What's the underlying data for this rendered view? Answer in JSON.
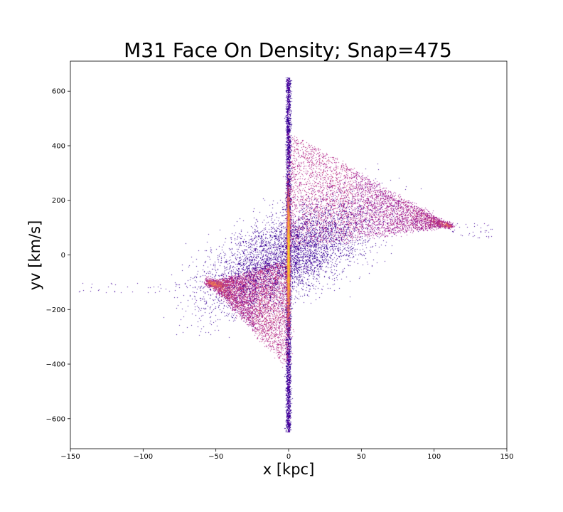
{
  "chart_data": {
    "type": "heatmap",
    "title": "M31 Face On Density; Snap=475",
    "xlabel": "x [kpc]",
    "ylabel": "yv [km/s]",
    "xlim": [
      -150,
      150
    ],
    "ylim": [
      -710,
      710
    ],
    "xticks": [
      -150,
      -100,
      -50,
      0,
      50,
      100,
      150
    ],
    "xtick_labels": [
      "−150",
      "−100",
      "−50",
      "0",
      "50",
      "100",
      "150"
    ],
    "yticks": [
      -600,
      -400,
      -200,
      0,
      200,
      400,
      600
    ],
    "ytick_labels": [
      "−600",
      "−400",
      "−200",
      "0",
      "200",
      "400",
      "600"
    ],
    "colormap": "plasma",
    "colors": [
      "#0d0887",
      "#6a00a8",
      "#b12a90",
      "#e16462",
      "#fca636",
      "#f0f921"
    ],
    "grid": false,
    "features": [
      {
        "region": "central vertical ridge",
        "x": [
          -2,
          2
        ],
        "y": [
          -650,
          660
        ],
        "density": "highest"
      },
      {
        "region": "upper-right arm",
        "x": [
          0,
          115
        ],
        "y": [
          90,
          420
        ],
        "tip": [
          110,
          110
        ],
        "density": "medium"
      },
      {
        "region": "lower-left arm",
        "x": [
          -55,
          0
        ],
        "y": [
          -400,
          -90
        ],
        "tip": [
          -55,
          -110
        ],
        "density": "medium"
      },
      {
        "region": "sparse left tail",
        "x": [
          -145,
          -60
        ],
        "y": [
          -140,
          -100
        ],
        "density": "low"
      },
      {
        "region": "sparse right tail",
        "x": [
          115,
          140
        ],
        "y": [
          60,
          120
        ],
        "density": "low"
      }
    ]
  }
}
